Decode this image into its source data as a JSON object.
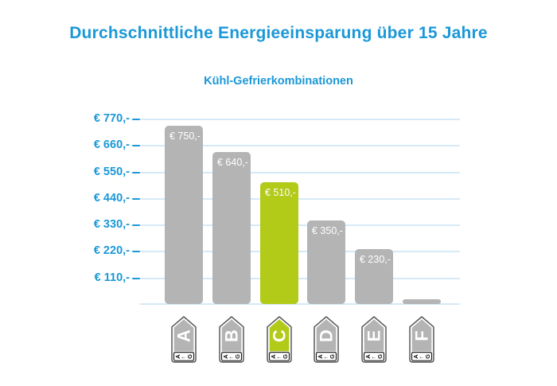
{
  "title": {
    "text": "Durchschnittliche Energieeinsparung über 15 Jahre"
  },
  "subtitle": {
    "text": "Kühl-Gefrierkombinationen"
  },
  "colors": {
    "accent_blue": "#1b98d7",
    "gridline_blue": "#d5e9f7",
    "bar_gray": "#b4b4b4",
    "bar_highlight_green": "#b2ca18",
    "bar_label_text": "#ffffff",
    "tag_outline": "#58585a",
    "tag_strip_border": "#222222",
    "tag_letter_text": "#ffffff",
    "background": "#ffffff"
  },
  "chart_data": {
    "type": "bar",
    "title": "Durchschnittliche Energieeinsparung über 15 Jahre",
    "subtitle": "Kühl-Gefrierkombinationen",
    "categories": [
      "A",
      "B",
      "C",
      "D",
      "E",
      "F"
    ],
    "values": [
      750,
      640,
      510,
      350,
      230,
      20
    ],
    "bar_labels": [
      "€ 750,-",
      "€ 640,-",
      "€ 510,-",
      "€ 350,-",
      "€ 230,-",
      ""
    ],
    "highlight_index": 2,
    "highlight_category": "C",
    "xlabel": "",
    "ylabel": "",
    "ylim": [
      0,
      800
    ],
    "grid": "horizontal",
    "legend": "none",
    "y_ticks": [
      {
        "value": 770,
        "label": "€ 770,-"
      },
      {
        "value": 660,
        "label": "€ 660,-"
      },
      {
        "value": 550,
        "label": "€ 550,-"
      },
      {
        "value": 440,
        "label": "€ 440,-"
      },
      {
        "value": 330,
        "label": "€ 330,-"
      },
      {
        "value": 220,
        "label": "€ 220,-"
      },
      {
        "value": 110,
        "label": "€ 110,-"
      }
    ],
    "x_axis_icons": {
      "type": "energy-efficiency-label",
      "range_start": "A",
      "range_arrow": "←",
      "range_end": "G"
    }
  }
}
